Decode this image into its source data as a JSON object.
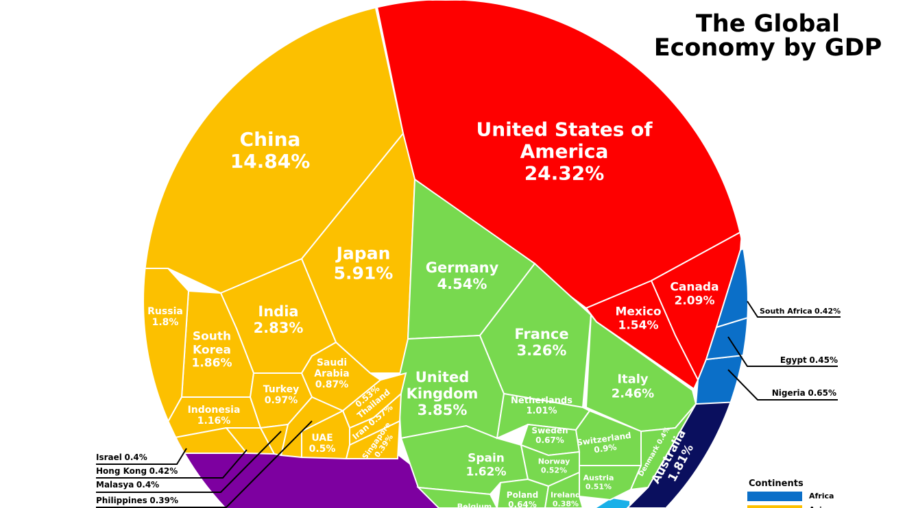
{
  "chart_data": {
    "type": "voronoi",
    "title": "The Global Economy by GDP",
    "countries": [
      {
        "name": "United States of America",
        "value": 24.32,
        "value_label": "24.32%",
        "color": "#fe0000"
      },
      {
        "name": "China",
        "value": 14.84,
        "value_label": "14.84%",
        "color": "#fcc000"
      },
      {
        "name": "Japan",
        "value": 5.91,
        "value_label": "5.91%",
        "color": "#fcc000"
      },
      {
        "name": "Germany",
        "value": 4.54,
        "value_label": "4.54%",
        "color": "#78d94f"
      },
      {
        "name": "United Kingdom",
        "value": 3.85,
        "value_label": "3.85%",
        "color": "#78d94f"
      },
      {
        "name": "France",
        "value": 3.26,
        "value_label": "3.26%",
        "color": "#78d94f"
      },
      {
        "name": "India",
        "value": 2.83,
        "value_label": "2.83%",
        "color": "#fcc000"
      },
      {
        "name": "Italy",
        "value": 2.46,
        "value_label": "2.46%",
        "color": "#78d94f"
      },
      {
        "name": "Canada",
        "value": 2.09,
        "value_label": "2.09%",
        "color": "#fe0000"
      },
      {
        "name": "South Korea",
        "value": 1.86,
        "value_label": "1.86%",
        "color": "#fcc000"
      },
      {
        "name": "Australia",
        "value": 1.81,
        "value_label": "1.81%",
        "color": "#0a0f5e"
      },
      {
        "name": "Russia",
        "value": 1.8,
        "value_label": "1.8%",
        "color": "#fcc000"
      },
      {
        "name": "Spain",
        "value": 1.62,
        "value_label": "1.62%",
        "color": "#78d94f"
      },
      {
        "name": "Mexico",
        "value": 1.54,
        "value_label": "1.54%",
        "color": "#fe0000"
      },
      {
        "name": "Indonesia",
        "value": 1.16,
        "value_label": "1.16%",
        "color": "#fcc000"
      },
      {
        "name": "Netherlands",
        "value": 1.01,
        "value_label": "1.01%",
        "color": "#78d94f"
      },
      {
        "name": "Turkey",
        "value": 0.97,
        "value_label": "0.97%",
        "color": "#fcc000"
      },
      {
        "name": "Switzerland",
        "value": 0.9,
        "value_label": "0.9%",
        "color": "#78d94f"
      },
      {
        "name": "Saudi Arabia",
        "value": 0.87,
        "value_label": "0.87%",
        "color": "#fcc000"
      },
      {
        "name": "Sweden",
        "value": 0.67,
        "value_label": "0.67%",
        "color": "#78d94f"
      },
      {
        "name": "Nigeria",
        "value": 0.65,
        "value_label": "0.65%",
        "color": "#0b6fc8"
      },
      {
        "name": "Poland",
        "value": 0.64,
        "value_label": "0.64%",
        "color": "#78d94f"
      },
      {
        "name": "Iran",
        "value": 0.57,
        "value_label": "0.57%",
        "color": "#fcc000"
      },
      {
        "name": "Thailand",
        "value": 0.53,
        "value_label": "0.53%",
        "color": "#fcc000"
      },
      {
        "name": "Norway",
        "value": 0.52,
        "value_label": "0.52%",
        "color": "#78d94f"
      },
      {
        "name": "Austria",
        "value": 0.51,
        "value_label": "0.51%",
        "color": "#78d94f"
      },
      {
        "name": "UAE",
        "value": 0.5,
        "value_label": "0.5%",
        "color": "#fcc000"
      },
      {
        "name": "Egypt",
        "value": 0.45,
        "value_label": "0.45%",
        "color": "#0b6fc8"
      },
      {
        "name": "South Africa",
        "value": 0.42,
        "value_label": "0.42%",
        "color": "#0b6fc8"
      },
      {
        "name": "Hong Kong",
        "value": 0.42,
        "value_label": "0.42%",
        "color": "#fcc000"
      },
      {
        "name": "Israel",
        "value": 0.4,
        "value_label": "0.4%",
        "color": "#fcc000"
      },
      {
        "name": "Malasya",
        "value": 0.4,
        "value_label": "0.4%",
        "color": "#fcc000"
      },
      {
        "name": "Denmark",
        "value": 0.4,
        "value_label": "0.4%",
        "color": "#78d94f"
      },
      {
        "name": "Singapore",
        "value": 0.39,
        "value_label": "0.39%",
        "color": "#fcc000"
      },
      {
        "name": "Philippines",
        "value": 0.39,
        "value_label": "0.39%",
        "color": "#fcc000"
      },
      {
        "name": "Ireland",
        "value": 0.38,
        "value_label": "0.38%",
        "color": "#78d94f"
      },
      {
        "name": "Belgium",
        "color": "#78d94f"
      }
    ],
    "legend": {
      "title": "Continents",
      "items": [
        {
          "name": "Africa",
          "color": "#0b6fc8"
        },
        {
          "name": "Asia",
          "color": "#fcc000"
        }
      ]
    }
  }
}
